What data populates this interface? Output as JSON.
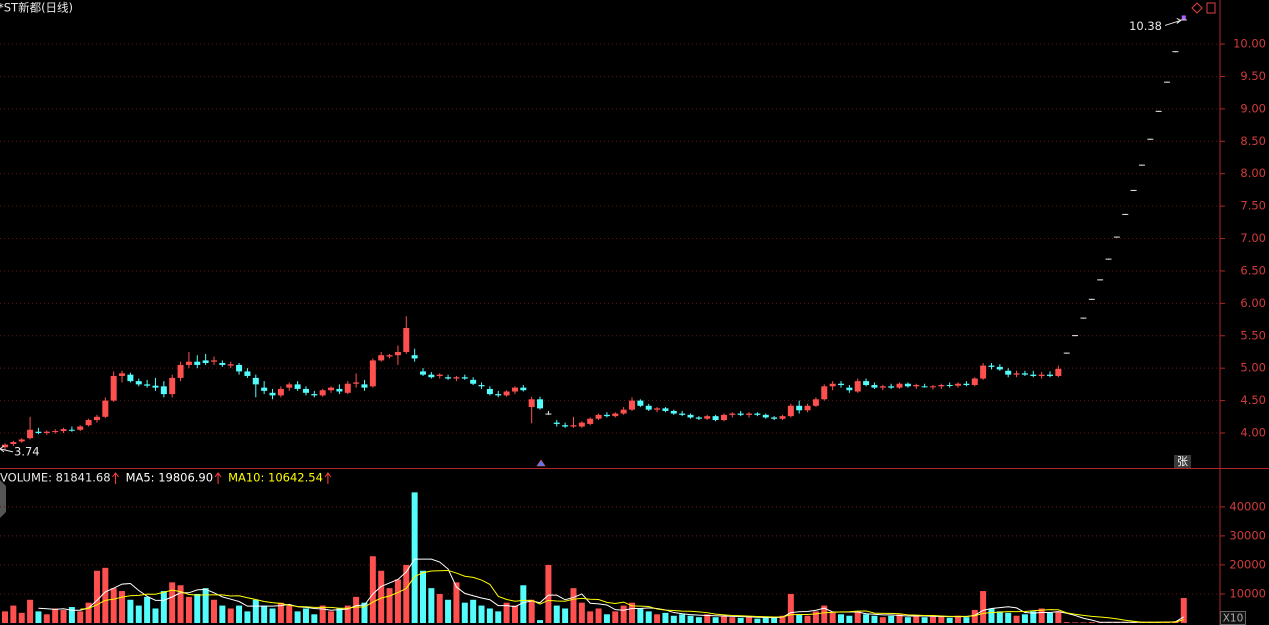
{
  "title": "*ST新都(日线)",
  "corner_mark": "张",
  "scale_label": "X10",
  "chart_data": [
    {
      "type": "candlestick",
      "up_color": "#ff5050",
      "down_color": "#54fcfc",
      "flat_color": "#e8e8e8",
      "open": [
        3.78,
        3.83,
        3.87,
        3.92,
        4.02,
        4.0,
        4.02,
        4.03,
        4.05,
        4.05,
        4.12,
        4.2,
        4.25,
        4.5,
        4.88,
        4.9,
        4.8,
        4.75,
        4.73,
        4.72,
        4.6,
        4.85,
        5.05,
        5.1,
        5.12,
        5.1,
        5.08,
        5.04,
        5.05,
        4.95,
        4.85,
        4.7,
        4.62,
        4.58,
        4.7,
        4.75,
        4.68,
        4.6,
        4.58,
        4.66,
        4.68,
        4.62,
        4.76,
        4.75,
        4.72,
        5.12,
        5.18,
        5.2,
        5.25,
        5.2,
        4.95,
        4.9,
        4.88,
        4.86,
        4.84,
        4.86,
        4.82,
        4.74,
        4.68,
        4.6,
        4.58,
        4.64,
        4.7,
        4.4,
        4.52,
        4.3,
        4.16,
        4.12,
        4.1,
        4.1,
        4.14,
        4.22,
        4.28,
        4.26,
        4.3,
        4.36,
        4.5,
        4.42,
        4.36,
        4.38,
        4.34,
        4.3,
        4.28,
        4.24,
        4.22,
        4.26,
        4.2,
        4.28,
        4.3,
        4.28,
        4.3,
        4.28,
        4.24,
        4.22,
        4.26,
        4.42,
        4.35,
        4.42,
        4.52,
        4.72,
        4.76,
        4.7,
        4.64,
        4.8,
        4.74,
        4.7,
        4.72,
        4.7,
        4.76,
        4.72,
        4.72,
        4.71,
        4.72,
        4.74,
        4.73,
        4.76,
        4.74,
        4.84,
        5.04,
        5.02,
        4.96,
        4.9,
        4.92,
        4.9,
        4.88,
        4.9,
        4.88,
        5.24,
        5.51,
        5.78,
        6.07,
        6.37,
        6.69,
        7.03,
        7.38,
        7.75,
        8.14,
        8.54,
        8.97,
        9.42,
        9.89,
        10.38
      ],
      "high": [
        3.84,
        3.88,
        3.92,
        4.25,
        4.08,
        4.04,
        4.06,
        4.08,
        4.1,
        4.12,
        4.22,
        4.28,
        4.55,
        4.95,
        4.96,
        4.93,
        4.84,
        4.82,
        4.85,
        4.8,
        4.9,
        5.1,
        5.25,
        5.2,
        5.22,
        5.18,
        5.12,
        5.1,
        5.08,
        5.0,
        4.9,
        4.8,
        4.68,
        4.72,
        4.78,
        4.8,
        4.72,
        4.65,
        4.68,
        4.72,
        4.75,
        4.8,
        4.92,
        4.82,
        5.15,
        5.25,
        5.22,
        5.35,
        5.8,
        5.3,
        5.0,
        4.94,
        4.92,
        4.9,
        4.88,
        4.9,
        4.86,
        4.78,
        4.72,
        4.65,
        4.66,
        4.72,
        4.74,
        4.56,
        4.56,
        4.34,
        4.2,
        4.16,
        4.25,
        4.18,
        4.24,
        4.3,
        4.32,
        4.32,
        4.4,
        4.55,
        4.52,
        4.45,
        4.4,
        4.4,
        4.36,
        4.34,
        4.3,
        4.26,
        4.28,
        4.28,
        4.3,
        4.32,
        4.34,
        4.32,
        4.32,
        4.3,
        4.26,
        4.28,
        4.45,
        4.5,
        4.45,
        4.55,
        4.75,
        4.8,
        4.8,
        4.74,
        4.84,
        4.84,
        4.78,
        4.74,
        4.76,
        4.78,
        4.78,
        4.76,
        4.76,
        4.74,
        4.76,
        4.78,
        4.78,
        4.8,
        4.86,
        5.08,
        5.08,
        5.06,
        5.0,
        4.96,
        4.96,
        4.96,
        4.94,
        4.95,
        5.04,
        5.24,
        5.51,
        5.78,
        6.07,
        6.37,
        6.69,
        7.03,
        7.38,
        7.75,
        8.14,
        8.54,
        8.97,
        9.42,
        9.89,
        10.38
      ],
      "low": [
        3.74,
        3.8,
        3.85,
        3.9,
        3.98,
        3.97,
        3.99,
        4.0,
        4.02,
        4.03,
        4.1,
        4.16,
        4.23,
        4.48,
        4.78,
        4.78,
        4.72,
        4.7,
        4.65,
        4.55,
        4.55,
        4.8,
        5.0,
        5.0,
        5.05,
        5.05,
        5.02,
        5.0,
        4.9,
        4.85,
        4.55,
        4.6,
        4.52,
        4.55,
        4.65,
        4.65,
        4.58,
        4.55,
        4.56,
        4.62,
        4.6,
        4.6,
        4.7,
        4.65,
        4.7,
        5.1,
        5.15,
        5.05,
        5.22,
        5.1,
        4.88,
        4.84,
        4.84,
        4.82,
        4.8,
        4.82,
        4.74,
        4.68,
        4.58,
        4.55,
        4.56,
        4.6,
        4.64,
        4.15,
        4.36,
        4.28,
        4.1,
        4.08,
        4.08,
        4.08,
        4.12,
        4.2,
        4.24,
        4.24,
        4.28,
        4.34,
        4.4,
        4.34,
        4.32,
        4.32,
        4.28,
        4.26,
        4.22,
        4.2,
        4.2,
        4.18,
        4.18,
        4.24,
        4.26,
        4.24,
        4.26,
        4.22,
        4.2,
        4.2,
        4.24,
        4.3,
        4.32,
        4.4,
        4.5,
        4.66,
        4.7,
        4.62,
        4.62,
        4.72,
        4.68,
        4.66,
        4.68,
        4.68,
        4.7,
        4.68,
        4.7,
        4.67,
        4.68,
        4.7,
        4.7,
        4.72,
        4.72,
        4.82,
        4.98,
        4.96,
        4.86,
        4.86,
        4.88,
        4.86,
        4.84,
        4.86,
        4.86,
        5.24,
        5.51,
        5.78,
        6.07,
        6.37,
        6.69,
        7.03,
        7.38,
        7.75,
        8.14,
        8.54,
        8.97,
        9.42,
        9.89,
        10.38
      ],
      "close": [
        3.82,
        3.86,
        3.9,
        4.05,
        4.0,
        4.02,
        4.03,
        4.06,
        4.04,
        4.1,
        4.2,
        4.25,
        4.5,
        4.88,
        4.92,
        4.8,
        4.75,
        4.73,
        4.7,
        4.6,
        4.85,
        5.05,
        5.1,
        5.05,
        5.08,
        5.12,
        5.05,
        5.06,
        4.95,
        4.88,
        4.75,
        4.65,
        4.58,
        4.68,
        4.75,
        4.68,
        4.62,
        4.58,
        4.66,
        4.7,
        4.64,
        4.76,
        4.78,
        4.7,
        5.12,
        5.2,
        5.2,
        5.25,
        5.62,
        5.15,
        4.9,
        4.86,
        4.9,
        4.84,
        4.86,
        4.84,
        4.76,
        4.72,
        4.6,
        4.58,
        4.64,
        4.7,
        4.66,
        4.52,
        4.38,
        4.3,
        4.14,
        4.1,
        4.12,
        4.16,
        4.22,
        4.28,
        4.26,
        4.3,
        4.36,
        4.5,
        4.42,
        4.36,
        4.38,
        4.34,
        4.3,
        4.28,
        4.24,
        4.22,
        4.26,
        4.2,
        4.28,
        4.3,
        4.28,
        4.3,
        4.28,
        4.24,
        4.22,
        4.26,
        4.42,
        4.35,
        4.42,
        4.52,
        4.72,
        4.76,
        4.74,
        4.66,
        4.8,
        4.74,
        4.7,
        4.72,
        4.7,
        4.76,
        4.72,
        4.74,
        4.71,
        4.72,
        4.74,
        4.73,
        4.76,
        4.74,
        4.84,
        5.04,
        5.02,
        4.98,
        4.9,
        4.92,
        4.9,
        4.88,
        4.9,
        4.88,
        4.99,
        5.24,
        5.51,
        5.78,
        6.07,
        6.37,
        6.69,
        7.03,
        7.38,
        7.75,
        8.14,
        8.54,
        8.97,
        9.42,
        9.89,
        10.38
      ],
      "ylim": [
        3.46,
        10.68
      ],
      "yticks": [
        {
          "value": 4,
          "label": "4.00"
        },
        {
          "value": 4.5,
          "label": "4.50"
        },
        {
          "value": 5,
          "label": "5.00"
        },
        {
          "value": 5.5,
          "label": "5.50"
        },
        {
          "value": 6,
          "label": "6.00"
        },
        {
          "value": 6.5,
          "label": "6.50"
        },
        {
          "value": 7,
          "label": "7.00"
        },
        {
          "value": 7.5,
          "label": "7.50"
        },
        {
          "value": 8,
          "label": "8.00"
        },
        {
          "value": 8.5,
          "label": "8.50"
        },
        {
          "value": 9,
          "label": "9.00"
        },
        {
          "value": 9.5,
          "label": "9.50"
        },
        {
          "value": 10,
          "label": "10.00"
        }
      ],
      "grid": true
    },
    {
      "type": "bar",
      "label": "VOLUME: 81841.68",
      "up_color": "#ff5050",
      "down_color": "#54fcfc",
      "values": [
        4000,
        6000,
        3500,
        8000,
        4000,
        3000,
        5000,
        4500,
        5500,
        4000,
        7000,
        18000,
        19000,
        12000,
        11000,
        8000,
        6000,
        9000,
        5000,
        11000,
        14000,
        13000,
        9000,
        10000,
        12000,
        8000,
        6000,
        5000,
        6000,
        4000,
        8000,
        6000,
        5000,
        7000,
        6000,
        4000,
        5000,
        3000,
        6000,
        4000,
        5000,
        6000,
        9000,
        7000,
        23000,
        18000,
        12000,
        15000,
        20000,
        45000,
        18000,
        12000,
        10000,
        8000,
        14000,
        7000,
        8000,
        6000,
        5000,
        4000,
        7000,
        6000,
        13000,
        8000,
        1000,
        20000,
        6000,
        5000,
        12000,
        7000,
        4000,
        5000,
        3000,
        4000,
        6000,
        7000,
        5000,
        4000,
        3000,
        3500,
        2500,
        3000,
        2500,
        2000,
        3000,
        2000,
        2500,
        2000,
        1800,
        2200,
        1500,
        2000,
        1800,
        2500,
        10000,
        3000,
        2500,
        4000,
        6000,
        3500,
        3000,
        2500,
        4000,
        3000,
        2500,
        2000,
        2500,
        3000,
        2000,
        2500,
        2000,
        2200,
        2500,
        1800,
        2500,
        2000,
        4500,
        11000,
        5000,
        4000,
        3500,
        2500,
        3000,
        4000,
        5000,
        3500,
        4000,
        300,
        200,
        200,
        300,
        200,
        300,
        200,
        200,
        300,
        200,
        300,
        400,
        500,
        600,
        8600
      ],
      "series": [
        {
          "name": "MA5: 19806.90",
          "color": "#ffffff",
          "values": [
            null,
            null,
            null,
            null,
            5100,
            4900,
            4700,
            4900,
            4400,
            4400,
            5200,
            7800,
            10700,
            12000,
            13400,
            13600,
            11200,
            9200,
            7800,
            7800,
            9000,
            10400,
            10400,
            11400,
            11600,
            10400,
            9000,
            8200,
            7400,
            5800,
            5800,
            5800,
            5800,
            6000,
            6400,
            5600,
            5400,
            5000,
            4800,
            4400,
            4600,
            4800,
            6000,
            6200,
            10000,
            12600,
            13800,
            15000,
            17600,
            22000,
            22000,
            22000,
            21000,
            18600,
            12400,
            10200,
            9400,
            8600,
            8000,
            6000,
            6000,
            5600,
            7000,
            7600,
            7000,
            9600,
            9600,
            8000,
            8800,
            10000,
            6800,
            6600,
            6200,
            4600,
            4400,
            5000,
            5000,
            5200,
            5000,
            4500,
            3600,
            3200,
            2900,
            2700,
            2600,
            2500,
            2400,
            2300,
            2260,
            2100,
            2000,
            1900,
            1860,
            2000,
            3560,
            3860,
            3960,
            4400,
            5100,
            3800,
            3800,
            3800,
            3800,
            3200,
            3000,
            2800,
            2800,
            2600,
            2400,
            2400,
            2400,
            2340,
            2240,
            2200,
            2200,
            2200,
            2660,
            4360,
            5000,
            5300,
            5600,
            5200,
            3600,
            3400,
            3600,
            3600,
            3900,
            3360,
            2600,
            1640,
            1000,
            240,
            240,
            240,
            240,
            240,
            240,
            240,
            280,
            340,
            400,
            2080
          ]
        },
        {
          "name": "MA10: 10642.54",
          "color": "#ffff00",
          "values": [
            null,
            null,
            null,
            null,
            null,
            null,
            null,
            null,
            null,
            4750,
            5050,
            6250,
            7800,
            8200,
            8900,
            9400,
            9500,
            9950,
            9900,
            10600,
            11300,
            10800,
            9800,
            9600,
            9700,
            9700,
            9700,
            9300,
            9400,
            8700,
            8100,
            7400,
            7000,
            6700,
            6100,
            5700,
            5600,
            5400,
            5400,
            5400,
            5100,
            5100,
            5500,
            5500,
            7200,
            8600,
            9300,
            10500,
            11900,
            16000,
            17300,
            17900,
            18000,
            18100,
            17200,
            16100,
            15700,
            14800,
            13300,
            9200,
            8100,
            7500,
            7800,
            7800,
            6500,
            7800,
            7600,
            7500,
            8200,
            8500,
            8200,
            8100,
            7100,
            6700,
            7200,
            5900,
            5800,
            5700,
            4800,
            4450,
            4300,
            4100,
            4050,
            3850,
            3550,
            3050,
            2800,
            2600,
            2480,
            2350,
            2250,
            2150,
            2080,
            2130,
            2830,
            2930,
            2930,
            3130,
            3550,
            3680,
            3830,
            3880,
            4100,
            4150,
            3400,
            3300,
            3300,
            3200,
            2800,
            2700,
            2600,
            2570,
            2420,
            2300,
            2300,
            2300,
            2500,
            3300,
            3600,
            3750,
            3900,
            3930,
            3980,
            4200,
            4450,
            4600,
            4550,
            3480,
            3000,
            2620,
            2300,
            2070,
            1800,
            1420,
            940,
            620,
            240,
            240,
            260,
            290,
            320,
            1160
          ]
        }
      ],
      "ylim": [
        0,
        52700
      ],
      "yticks": [
        10000,
        20000,
        30000,
        40000
      ],
      "grid": true
    }
  ]
}
